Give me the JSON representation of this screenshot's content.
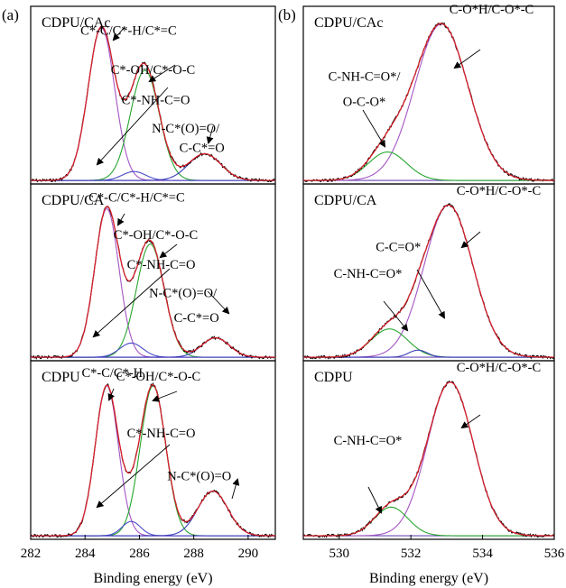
{
  "colors": {
    "raw": "#000000",
    "envelope": "#e0202a",
    "c_sp2": "#a455c4",
    "c_o": "#27a62f",
    "c_n": "#4a4ac8",
    "c_carboxyl": "#3a3ab8",
    "o_main": "#a455c4",
    "o_amide": "#27a62f",
    "o_ketone": "#3a3ab8",
    "baseline": "#6a4ab8"
  },
  "chart_data": [
    {
      "id": "a",
      "panel_label": "(a)",
      "type": "line",
      "xlabel": "Binding energy (eV)",
      "xlim": [
        282,
        291
      ],
      "xticks": [
        282,
        284,
        286,
        288,
        290
      ],
      "rows": [
        {
          "sample": "CDPU/CAc",
          "baseline": 0.02,
          "series": [
            {
              "role": "c_sp2",
              "center": 284.6,
              "height": 0.86,
              "width": 1.15
            },
            {
              "role": "c_o",
              "center": 286.2,
              "height": 0.62,
              "width": 1.25
            },
            {
              "role": "c_n",
              "center": 285.8,
              "height": 0.05,
              "width": 1.0
            },
            {
              "role": "c_carboxyl",
              "center": 288.4,
              "height": 0.15,
              "width": 1.4
            }
          ],
          "annotations": [
            {
              "text": "C*-C/C*-H/C*=C",
              "x": 285.6,
              "y": 0.84
            },
            {
              "text": "C*-OH/C*-O-C",
              "x": 286.5,
              "y": 0.62
            },
            {
              "text": "C*-NH-C=O",
              "x": 286.6,
              "y": 0.45
            },
            {
              "text": "N-C*(O)=O/",
              "x": 287.7,
              "y": 0.29
            },
            {
              "text": "C-C*=O",
              "x": 288.3,
              "y": 0.18
            }
          ]
        },
        {
          "sample": "CDPU/CA",
          "baseline": 0.02,
          "series": [
            {
              "role": "c_sp2",
              "center": 284.8,
              "height": 0.84,
              "width": 1.05
            },
            {
              "role": "c_o",
              "center": 286.4,
              "height": 0.64,
              "width": 1.2
            },
            {
              "role": "c_n",
              "center": 285.7,
              "height": 0.08,
              "width": 1.0
            },
            {
              "role": "c_carboxyl",
              "center": 288.8,
              "height": 0.11,
              "width": 1.2
            }
          ],
          "annotations": [
            {
              "text": "C*-C/C*-H/C*=C",
              "x": 285.9,
              "y": 0.9
            },
            {
              "text": "C*-OH/C*-O-C",
              "x": 286.6,
              "y": 0.69
            },
            {
              "text": "C*-NH-C=O",
              "x": 286.8,
              "y": 0.52
            },
            {
              "text": "N-C*(O)=O/",
              "x": 287.6,
              "y": 0.36
            },
            {
              "text": "C-C*=O",
              "x": 288.1,
              "y": 0.22
            }
          ]
        },
        {
          "sample": "CDPU",
          "baseline": 0.02,
          "series": [
            {
              "role": "c_sp2",
              "center": 284.8,
              "height": 0.84,
              "width": 1.0
            },
            {
              "role": "c_o",
              "center": 286.5,
              "height": 0.84,
              "width": 1.1
            },
            {
              "role": "c_n",
              "center": 285.7,
              "height": 0.08,
              "width": 0.8
            },
            {
              "role": "c_carboxyl",
              "center": 288.7,
              "height": 0.25,
              "width": 1.3
            }
          ],
          "annotations": [
            {
              "text": "C*-C/C*-H",
              "x": 285.0,
              "y": 0.91
            },
            {
              "text": "C*-OH/C*-O-C",
              "x": 286.7,
              "y": 0.89
            },
            {
              "text": "C*-NH-C=O",
              "x": 286.8,
              "y": 0.57
            },
            {
              "text": "N-C*(O)=O",
              "x": 288.2,
              "y": 0.33
            }
          ]
        }
      ]
    },
    {
      "id": "b",
      "panel_label": "(b)",
      "type": "line",
      "xlabel": "Binding energy (eV)",
      "xlim": [
        529,
        536
      ],
      "xticks": [
        530,
        532,
        534,
        536
      ],
      "rows": [
        {
          "sample": "CDPU/CAc",
          "baseline": 0.02,
          "series": [
            {
              "role": "o_main",
              "center": 532.85,
              "height": 0.88,
              "width": 1.75
            },
            {
              "role": "o_amide",
              "center": 531.35,
              "height": 0.16,
              "width": 1.25
            }
          ],
          "annotations": [
            {
              "text": "C-O*H/C-O*-C",
              "x": 534.25,
              "y": 0.96
            },
            {
              "text": "C-NH-C=O*/",
              "x": 530.7,
              "y": 0.58
            },
            {
              "text": "O-C-O*",
              "x": 530.7,
              "y": 0.44
            }
          ]
        },
        {
          "sample": "CDPU/CA",
          "baseline": 0.02,
          "series": [
            {
              "role": "o_main",
              "center": 533.05,
              "height": 0.86,
              "width": 1.6
            },
            {
              "role": "o_amide",
              "center": 531.4,
              "height": 0.16,
              "width": 1.2
            },
            {
              "role": "o_ketone",
              "center": 532.2,
              "height": 0.04,
              "width": 0.6
            }
          ],
          "annotations": [
            {
              "text": "C-O*H/C-O*-C",
              "x": 534.45,
              "y": 0.94
            },
            {
              "text": "C-C=O*",
              "x": 531.65,
              "y": 0.62
            },
            {
              "text": "C-NH-C=O*",
              "x": 530.8,
              "y": 0.47
            }
          ]
        },
        {
          "sample": "CDPU",
          "baseline": 0.02,
          "series": [
            {
              "role": "o_main",
              "center": 533.1,
              "height": 0.86,
              "width": 1.5
            },
            {
              "role": "o_amide",
              "center": 531.45,
              "height": 0.16,
              "width": 1.1
            }
          ],
          "annotations": [
            {
              "text": "C-O*H/C-O*-C",
              "x": 534.45,
              "y": 0.94
            },
            {
              "text": "C-NH-C=O*",
              "x": 530.8,
              "y": 0.53
            }
          ]
        }
      ]
    }
  ]
}
